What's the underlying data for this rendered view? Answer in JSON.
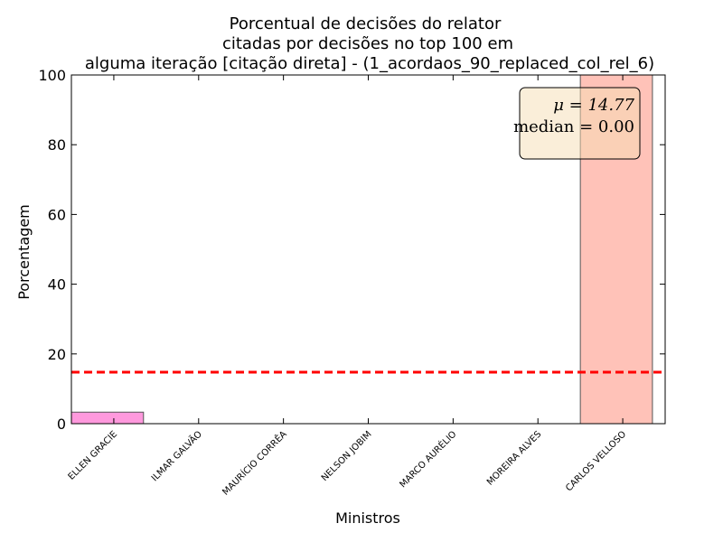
{
  "chart_data": {
    "type": "bar",
    "title_lines": [
      "Porcentual de decisões do relator",
      "citadas por decisões no top 100 em",
      "alguma iteração [citação direta] - (1_acordaos_90_replaced_col_rel_6)"
    ],
    "xlabel": "Ministros",
    "ylabel": "Porcentagem",
    "categories": [
      "ELLEN GRACIE",
      "ILMAR GALVÃO",
      "MAURÍCIO CORRÊA",
      "NELSON JOBIM",
      "MARCO AURÉLIO",
      "MOREIRA ALVES",
      "CARLOS VELLOSO"
    ],
    "values": [
      3.3,
      0,
      0,
      0,
      0,
      0,
      100
    ],
    "bar_colors": [
      "#ff99dd",
      "#ff99dd",
      "#ff99dd",
      "#ff99dd",
      "#ff99dd",
      "#ff99dd",
      "#ffc2b8"
    ],
    "ylim": [
      0,
      100
    ],
    "yticks": [
      "0",
      "20",
      "40",
      "60",
      "80",
      "100"
    ],
    "mean_line": {
      "value": 14.77,
      "color": "#ff0000"
    },
    "stats_box": {
      "mean_text": "μ = 14.77",
      "median_text": "median = 0.00",
      "background": "#f5deb3"
    },
    "grid": false
  }
}
